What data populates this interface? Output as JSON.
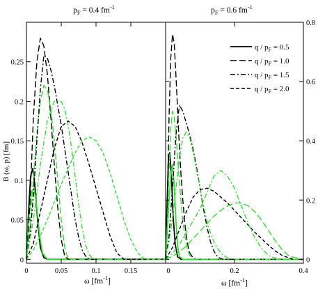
{
  "chart_data": [
    {
      "type": "line",
      "title": "p_F = 0.4 fm^-1",
      "title_parts": {
        "base": "p",
        "sub": "F",
        "mid": " = 0.4 fm",
        "sup": "-1"
      },
      "xlabel": "ω  [fm^-1]",
      "xlabel_parts": {
        "base": "ω  [fm",
        "sup": "-1",
        "end": "]"
      },
      "ylabel": "B (ω, p) [fm]",
      "xlim": [
        0,
        0.2
      ],
      "ylim": [
        -0.005,
        0.3
      ],
      "xticks": [
        0,
        0.05,
        0.1,
        0.15
      ],
      "yticks": [
        0,
        0.05,
        0.1,
        0.15,
        0.2,
        0.25
      ],
      "yaxis_side": "left",
      "colors": {
        "black": "#000000",
        "green": "#33dd33"
      },
      "series": [
        {
          "name": "q / p_F = 0.5",
          "color": "#000000",
          "dash": "solid",
          "x": [
            0,
            0.003,
            0.006,
            0.009,
            0.012,
            0.016,
            0.02,
            0.025,
            0.03,
            0.2
          ],
          "y": [
            0,
            0.06,
            0.105,
            0.115,
            0.095,
            0.05,
            0.015,
            0.002,
            0,
            0
          ]
        },
        {
          "name": "q / p_F = 0.5",
          "color": "#33dd33",
          "dash": "solid",
          "x": [
            0,
            0.003,
            0.007,
            0.011,
            0.015,
            0.019,
            0.023,
            0.03,
            0.2
          ],
          "y": [
            0,
            0.05,
            0.085,
            0.09,
            0.065,
            0.03,
            0.008,
            0,
            0
          ]
        },
        {
          "name": "q / p_F = 1.0",
          "color": "#000000",
          "dash": "longdash",
          "x": [
            0,
            0.005,
            0.01,
            0.015,
            0.02,
            0.025,
            0.03,
            0.035,
            0.04,
            0.045,
            0.05,
            0.055,
            0.06,
            0.2
          ],
          "y": [
            0,
            0.07,
            0.18,
            0.25,
            0.28,
            0.27,
            0.235,
            0.18,
            0.12,
            0.065,
            0.025,
            0.004,
            0,
            0
          ]
        },
        {
          "name": "q / p_F = 1.0",
          "color": "#33dd33",
          "dash": "longdash",
          "x": [
            0,
            0.005,
            0.01,
            0.015,
            0.02,
            0.025,
            0.03,
            0.035,
            0.04,
            0.045,
            0.05,
            0.055,
            0.06,
            0.2
          ],
          "y": [
            0,
            0.04,
            0.1,
            0.16,
            0.2,
            0.22,
            0.215,
            0.19,
            0.15,
            0.1,
            0.05,
            0.015,
            0,
            0
          ]
        },
        {
          "name": "q / p_F = 1.5",
          "color": "#000000",
          "dash": "dashdot",
          "x": [
            0,
            0.005,
            0.01,
            0.015,
            0.02,
            0.025,
            0.03,
            0.035,
            0.04,
            0.045,
            0.05,
            0.055,
            0.06,
            0.065,
            0.07,
            0.075,
            0.08,
            0.085,
            0.09,
            0.2
          ],
          "y": [
            0,
            0.03,
            0.08,
            0.15,
            0.215,
            0.258,
            0.255,
            0.24,
            0.22,
            0.195,
            0.17,
            0.14,
            0.11,
            0.08,
            0.05,
            0.028,
            0.012,
            0.004,
            0,
            0
          ]
        },
        {
          "name": "q / p_F = 1.5",
          "color": "#33dd33",
          "dash": "dashdot",
          "x": [
            0,
            0.01,
            0.02,
            0.03,
            0.04,
            0.05,
            0.055,
            0.06,
            0.065,
            0.07,
            0.075,
            0.08,
            0.085,
            0.09,
            0.095,
            0.1,
            0.2
          ],
          "y": [
            0,
            0.05,
            0.12,
            0.175,
            0.2,
            0.2,
            0.19,
            0.17,
            0.14,
            0.105,
            0.07,
            0.04,
            0.018,
            0.006,
            0.001,
            0,
            0
          ]
        },
        {
          "name": "q / p_F = 2.0",
          "color": "#000000",
          "dash": "shortdash",
          "x": [
            0,
            0.01,
            0.02,
            0.03,
            0.04,
            0.05,
            0.06,
            0.07,
            0.08,
            0.09,
            0.1,
            0.11,
            0.12,
            0.13,
            0.14,
            0.2
          ],
          "y": [
            0,
            0.02,
            0.06,
            0.1,
            0.14,
            0.168,
            0.175,
            0.168,
            0.148,
            0.12,
            0.09,
            0.06,
            0.03,
            0.008,
            0,
            0
          ]
        },
        {
          "name": "q / p_F = 2.0",
          "color": "#33dd33",
          "dash": "shortdash",
          "x": [
            0,
            0.01,
            0.02,
            0.03,
            0.04,
            0.05,
            0.06,
            0.07,
            0.08,
            0.09,
            0.1,
            0.11,
            0.12,
            0.13,
            0.14,
            0.15,
            0.16,
            0.17,
            0.2
          ],
          "y": [
            0,
            0.012,
            0.03,
            0.05,
            0.072,
            0.095,
            0.115,
            0.135,
            0.15,
            0.155,
            0.15,
            0.135,
            0.11,
            0.08,
            0.05,
            0.025,
            0.008,
            0,
            0
          ]
        }
      ]
    },
    {
      "type": "line",
      "title": "p_F = 0.6 fm^-1",
      "title_parts": {
        "base": "p",
        "sub": "F",
        "mid": " = 0.6 fm",
        "sup": "-1"
      },
      "xlabel": "ω [fm^-1]",
      "xlabel_parts": {
        "base": "ω [fm",
        "sup": "-1",
        "end": "]"
      },
      "ylabel": "",
      "xlim": [
        0,
        0.4
      ],
      "ylim": [
        -0.0133,
        0.8
      ],
      "xticks": [
        0,
        0.2,
        0.4
      ],
      "yticks": [
        0,
        0.2,
        0.4,
        0.6,
        0.8
      ],
      "yaxis_side": "right",
      "legend": {
        "placement": "top-right",
        "entries": [
          {
            "label": "q / p_F = 0.5",
            "label_parts": {
              "base": "q / p",
              "sub": "F",
              "end": " = 0.5"
            },
            "dash": "solid"
          },
          {
            "label": "q / p_F = 1.0",
            "label_parts": {
              "base": "q / p",
              "sub": "F",
              "end": " = 1.0"
            },
            "dash": "longdash"
          },
          {
            "label": "q / p_F = 1.5",
            "label_parts": {
              "base": "q / p",
              "sub": "F",
              "end": " = 1.5"
            },
            "dash": "dashdot"
          },
          {
            "label": "q / p_F = 2.0",
            "label_parts": {
              "base": "q / p",
              "sub": "F",
              "end": " = 2.0"
            },
            "dash": "shortdash"
          }
        ]
      },
      "series": [
        {
          "name": "q / p_F = 0.5",
          "color": "#000000",
          "dash": "solid",
          "x": [
            0,
            0.004,
            0.008,
            0.012,
            0.017,
            0.022,
            0.028,
            0.035,
            0.045,
            0.4
          ],
          "y": [
            0,
            0.17,
            0.33,
            0.36,
            0.28,
            0.14,
            0.05,
            0.008,
            0,
            0
          ]
        },
        {
          "name": "q / p_F = 0.5",
          "color": "#33dd33",
          "dash": "solid",
          "x": [
            0,
            0.005,
            0.01,
            0.015,
            0.02,
            0.025,
            0.03,
            0.035,
            0.04,
            0.05,
            0.4
          ],
          "y": [
            0,
            0.1,
            0.2,
            0.28,
            0.32,
            0.25,
            0.13,
            0.045,
            0.01,
            0,
            0
          ]
        },
        {
          "name": "q / p_F = 1.0",
          "color": "#000000",
          "dash": "longdash",
          "x": [
            0,
            0.005,
            0.01,
            0.015,
            0.02,
            0.025,
            0.03,
            0.035,
            0.04,
            0.045,
            0.05,
            0.055,
            0.06,
            0.065,
            0.07,
            0.08,
            0.09,
            0.4
          ],
          "y": [
            0,
            0.2,
            0.48,
            0.68,
            0.76,
            0.73,
            0.62,
            0.5,
            0.38,
            0.28,
            0.2,
            0.13,
            0.08,
            0.045,
            0.022,
            0.004,
            0,
            0
          ]
        },
        {
          "name": "q / p_F = 1.0",
          "color": "#33dd33",
          "dash": "longdash",
          "x": [
            0,
            0.005,
            0.01,
            0.015,
            0.02,
            0.025,
            0.03,
            0.035,
            0.04,
            0.045,
            0.05,
            0.055,
            0.06,
            0.065,
            0.07,
            0.08,
            0.09,
            0.4
          ],
          "y": [
            0,
            0.12,
            0.3,
            0.44,
            0.5,
            0.48,
            0.42,
            0.34,
            0.26,
            0.19,
            0.13,
            0.085,
            0.05,
            0.028,
            0.013,
            0.003,
            0,
            0
          ]
        },
        {
          "name": "q / p_F = 1.5",
          "color": "#000000",
          "dash": "dashdot",
          "x": [
            0,
            0.01,
            0.02,
            0.03,
            0.04,
            0.05,
            0.06,
            0.07,
            0.08,
            0.09,
            0.1,
            0.11,
            0.12,
            0.13,
            0.14,
            0.15,
            0.16,
            0.17,
            0.4
          ],
          "y": [
            0,
            0.08,
            0.24,
            0.42,
            0.52,
            0.5,
            0.46,
            0.42,
            0.37,
            0.31,
            0.24,
            0.17,
            0.11,
            0.06,
            0.028,
            0.01,
            0.002,
            0,
            0
          ]
        },
        {
          "name": "q / p_F = 1.5",
          "color": "#33dd33",
          "dash": "dashdot",
          "x": [
            0,
            0.01,
            0.02,
            0.03,
            0.04,
            0.05,
            0.06,
            0.07,
            0.08,
            0.09,
            0.1,
            0.11,
            0.12,
            0.13,
            0.14,
            0.15,
            0.16,
            0.17,
            0.18,
            0.19,
            0.2,
            0.21,
            0.4
          ],
          "y": [
            0,
            0.06,
            0.14,
            0.24,
            0.34,
            0.41,
            0.43,
            0.41,
            0.36,
            0.3,
            0.24,
            0.18,
            0.13,
            0.09,
            0.06,
            0.038,
            0.022,
            0.012,
            0.005,
            0.002,
            0.001,
            0,
            0
          ]
        },
        {
          "name": "q / p_F = 2.0",
          "color": "#000000",
          "dash": "shortdash",
          "x": [
            0,
            0.02,
            0.04,
            0.06,
            0.08,
            0.1,
            0.12,
            0.14,
            0.16,
            0.18,
            0.2,
            0.22,
            0.24,
            0.26,
            0.28,
            0.3,
            0.32,
            0.34,
            0.36,
            0.37,
            0.4
          ],
          "y": [
            0,
            0.04,
            0.1,
            0.16,
            0.21,
            0.235,
            0.24,
            0.23,
            0.21,
            0.19,
            0.165,
            0.14,
            0.115,
            0.09,
            0.068,
            0.046,
            0.027,
            0.012,
            0.004,
            0,
            0
          ]
        },
        {
          "name": "q / p_F = 2.0",
          "color": "#33dd33",
          "dash": "dashdot",
          "x": [
            0,
            0.02,
            0.04,
            0.06,
            0.08,
            0.1,
            0.12,
            0.14,
            0.16,
            0.18,
            0.2,
            0.22,
            0.24,
            0.26,
            0.28,
            0.3,
            0.32,
            0.34,
            0.4
          ],
          "y": [
            0,
            0.02,
            0.05,
            0.09,
            0.13,
            0.17,
            0.225,
            0.28,
            0.3,
            0.28,
            0.24,
            0.18,
            0.12,
            0.07,
            0.035,
            0.012,
            0.003,
            0,
            0
          ]
        },
        {
          "name": "q / p_F = 2.0",
          "color": "#33dd33",
          "dash": "longdash",
          "x": [
            0,
            0.02,
            0.04,
            0.06,
            0.08,
            0.1,
            0.12,
            0.14,
            0.16,
            0.18,
            0.2,
            0.22,
            0.24,
            0.26,
            0.28,
            0.3,
            0.32,
            0.34,
            0.36,
            0.4
          ],
          "y": [
            0,
            0.01,
            0.025,
            0.045,
            0.07,
            0.095,
            0.12,
            0.145,
            0.165,
            0.18,
            0.19,
            0.19,
            0.18,
            0.16,
            0.13,
            0.095,
            0.06,
            0.03,
            0.01,
            0
          ]
        }
      ]
    }
  ]
}
